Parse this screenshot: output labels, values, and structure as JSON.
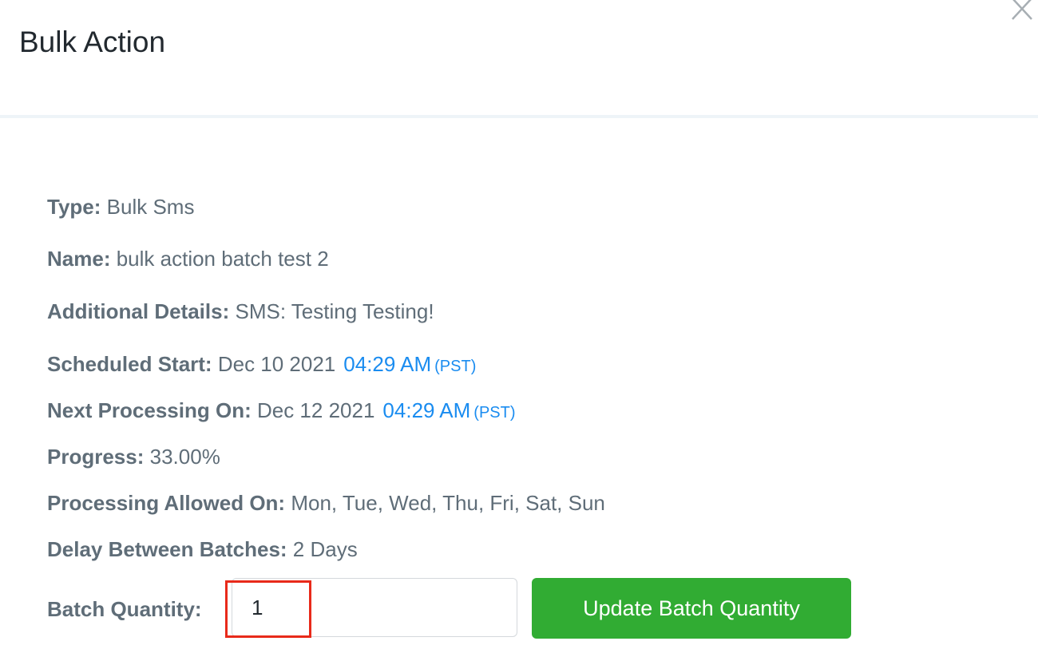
{
  "modal": {
    "title": "Bulk Action",
    "close_icon": "close-x-icon"
  },
  "details": {
    "type": {
      "label": "Type:",
      "value": "Bulk Sms"
    },
    "name": {
      "label": "Name:",
      "value": "bulk action batch test 2"
    },
    "additional": {
      "label": "Additional Details:",
      "value": "SMS: Testing Testing!"
    },
    "scheduled_start": {
      "label": "Scheduled Start:",
      "date": "Dec 10 2021",
      "time": "04:29 AM",
      "tz": "(PST)"
    },
    "next_processing": {
      "label": "Next Processing On:",
      "date": "Dec 12 2021",
      "time": "04:29 AM",
      "tz": "(PST)"
    },
    "progress": {
      "label": "Progress:",
      "value": "33.00%"
    },
    "allowed_on": {
      "label": "Processing Allowed On:",
      "value": "Mon, Tue, Wed, Thu, Fri, Sat, Sun"
    },
    "delay": {
      "label": "Delay Between Batches:",
      "value": "2 Days"
    },
    "batch_quantity": {
      "label": "Batch Quantity:",
      "value": "1"
    }
  },
  "actions": {
    "update_label": "Update Batch Quantity"
  },
  "colors": {
    "accent_link": "#1a8cf0",
    "button_green": "#31ac33",
    "highlight_red": "#e82a1a"
  }
}
